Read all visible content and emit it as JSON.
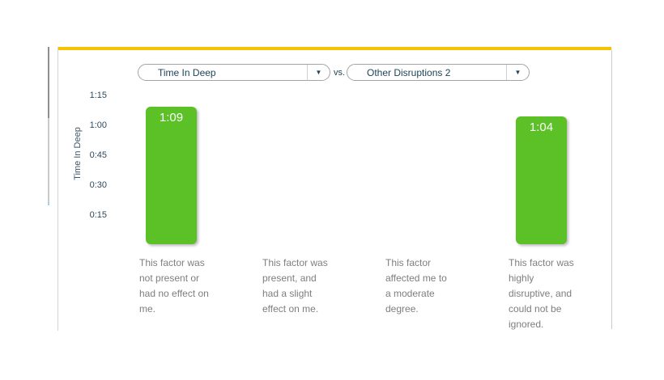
{
  "panel": {
    "accent_bar_color": "#F6C101"
  },
  "toolbar": {
    "metric_dropdown": {
      "value": "Time In Deep"
    },
    "vs_label": "vs.",
    "factor_dropdown": {
      "value": "Other Disruptions 2"
    },
    "dropdown_arrow_icon": "▼"
  },
  "chart_data": {
    "type": "bar",
    "title": "Time In Deep vs. Other Disruptions 2",
    "ylabel": "Time In Deep",
    "yticks": [
      "1:15",
      "1:00",
      "0:45",
      "0:30",
      "0:15"
    ],
    "ytick_minutes": [
      75,
      60,
      45,
      30,
      15
    ],
    "ylim_minutes": [
      0,
      82
    ],
    "grid": false,
    "legend": "none",
    "bar_color": "#5BC127",
    "categories": [
      "This factor was\nnot present or\nhad no effect on\nme.",
      "This factor was\npresent, and\nhad a slight\neffect on me.",
      "This factor\naffected me to\na moderate\ndegree.",
      "This factor was\nhighly\ndisruptive, and\ncould not be\nignored."
    ],
    "bars": [
      {
        "category_index": 0,
        "label": "1:09",
        "minutes": 69
      },
      {
        "category_index": 3,
        "label": "1:04",
        "minutes": 64
      }
    ]
  }
}
